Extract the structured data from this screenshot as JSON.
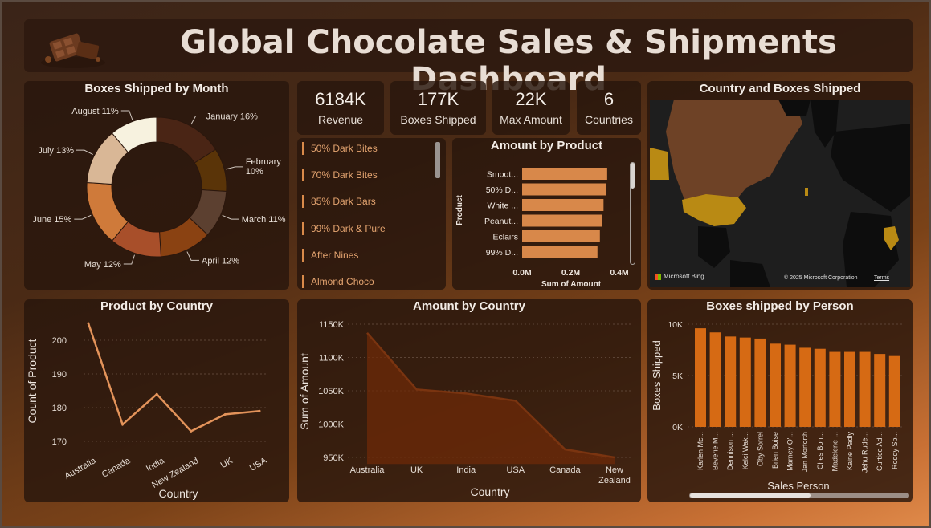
{
  "header": {
    "title": "Global Chocolate Sales & Shipments Dashboard"
  },
  "kpis": [
    {
      "value": "6184K",
      "label": "Revenue"
    },
    {
      "value": "177K",
      "label": "Boxes Shipped"
    },
    {
      "value": "22K",
      "label": "Max Amount"
    },
    {
      "value": "6",
      "label": "Countries"
    }
  ],
  "slicer": {
    "items": [
      "50% Dark Bites",
      "70% Dark Bites",
      "85% Dark Bars",
      "99% Dark & Pure",
      "After Nines",
      "Almond Choco"
    ]
  },
  "map": {
    "title": "Country and Boxes Shipped",
    "logo": "Microsoft Bing",
    "copyright": "© 2025 Microsoft Corporation",
    "terms": "Terms"
  },
  "chart_data": [
    {
      "id": "boxes_by_month",
      "type": "pie",
      "title": "Boxes Shipped by Month",
      "categories": [
        "January",
        "February",
        "March",
        "April",
        "May",
        "June",
        "July",
        "August"
      ],
      "values": [
        16,
        10,
        11,
        12,
        12,
        15,
        13,
        11
      ],
      "labels": [
        "January 16%",
        "February 10%",
        "March 11%",
        "April 12%",
        "May 12%",
        "June 15%",
        "July 13%",
        "August 11%"
      ],
      "colors": [
        "#4a2515",
        "#5a3408",
        "#5c4030",
        "#8a4212",
        "#a84f2a",
        "#cf7a3a",
        "#d9b796",
        "#f7f2df"
      ]
    },
    {
      "id": "amount_by_product",
      "type": "bar",
      "title": "Amount by Product",
      "categories": [
        "Smoot...",
        "50% D...",
        "White ...",
        "Peanut...",
        "Eclairs",
        "99% D..."
      ],
      "values": [
        0.35,
        0.345,
        0.335,
        0.33,
        0.32,
        0.31
      ],
      "xlabel": "Sum of Amount",
      "ylabel": "Product",
      "xticks": [
        "0.0M",
        "0.2M",
        "0.4M"
      ],
      "xlim": [
        0,
        0.4
      ]
    },
    {
      "id": "product_by_country",
      "type": "line",
      "title": "Product by Country",
      "categories": [
        "Australia",
        "Canada",
        "India",
        "New Zealand",
        "UK",
        "USA"
      ],
      "values": [
        205,
        175,
        184,
        173,
        178,
        179
      ],
      "xlabel": "Country",
      "ylabel": "Count of Product",
      "yticks": [
        "170",
        "180",
        "190",
        "200"
      ],
      "ylim": [
        168,
        206
      ]
    },
    {
      "id": "amount_by_country",
      "type": "area",
      "title": "Amount by Country",
      "categories": [
        "Australia",
        "UK",
        "India",
        "USA",
        "Canada",
        "New Zealand"
      ],
      "values": [
        1137,
        1052,
        1046,
        1035,
        962,
        950
      ],
      "xlabel": "Country",
      "ylabel": "Sum of Amount",
      "yticks": [
        "950K",
        "1000K",
        "1050K",
        "1100K",
        "1150K"
      ],
      "ylim": [
        940,
        1160
      ]
    },
    {
      "id": "boxes_by_person",
      "type": "bar",
      "title": "Boxes shipped by Person",
      "categories": [
        "Karlen Mc...",
        "Beverie M...",
        "Dennison ...",
        "Kelci Wak...",
        "Oby Sorrel",
        "Brien Boise",
        "Marney O'...",
        "Jan Morforth",
        "Ches Bon...",
        "Madelene ...",
        "Kaine Padly",
        "Jehu Rude...",
        "Curtice Ad...",
        "Roddy Sp..."
      ],
      "values": [
        9.6,
        9.2,
        8.8,
        8.7,
        8.6,
        8.1,
        8.0,
        7.7,
        7.6,
        7.3,
        7.3,
        7.3,
        7.1,
        6.9
      ],
      "xlabel": "Sales Person",
      "ylabel": "Boxes Shipped",
      "yticks": [
        "0K",
        "5K",
        "10K"
      ],
      "ylim": [
        0,
        10
      ]
    }
  ]
}
